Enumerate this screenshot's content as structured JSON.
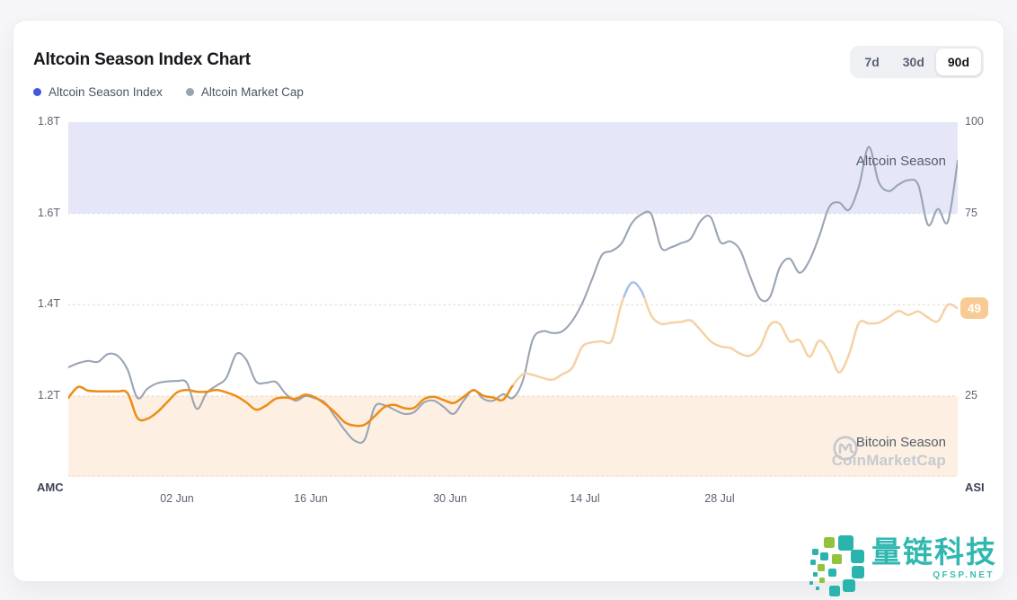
{
  "header": {
    "title": "Altcoin Season Index Chart",
    "ranges": [
      {
        "label": "7d",
        "active": false
      },
      {
        "label": "30d",
        "active": false
      },
      {
        "label": "90d",
        "active": true
      }
    ]
  },
  "legend": {
    "items": [
      {
        "label": "Altcoin Season Index",
        "color": "#4356e0"
      },
      {
        "label": "Altcoin Market Cap",
        "color": "#98a2b0"
      }
    ]
  },
  "chart_data": {
    "type": "line",
    "title": "Altcoin Season Index Chart",
    "watermark": "CoinMarketCap",
    "grid": "dotted-horizontal",
    "legend_position": "top-left",
    "left_axis": {
      "title": "AMC",
      "range": [
        1.0229,
        1.8
      ],
      "ticks": [
        {
          "label": "1.8T",
          "value": 1.8
        },
        {
          "label": "1.6T",
          "value": 1.6
        },
        {
          "label": "1.4T",
          "value": 1.4
        },
        {
          "label": "1.2T",
          "value": 1.2
        }
      ]
    },
    "right_axis": {
      "title": "ASI",
      "range": [
        2.87,
        100
      ],
      "ticks": [
        {
          "label": "100",
          "value": 100
        },
        {
          "label": "75",
          "value": 75
        },
        {
          "label": "25",
          "value": 25
        }
      ]
    },
    "x_axis": {
      "tick_labels": [
        {
          "label": "02 Jun",
          "pos": 0.1222
        },
        {
          "label": "16 Jun",
          "pos": 0.2727
        },
        {
          "label": "30 Jun",
          "pos": 0.4293
        },
        {
          "label": "14 Jul",
          "pos": 0.5808
        },
        {
          "label": "28 Jul",
          "pos": 0.7323
        }
      ]
    },
    "zones": {
      "altcoin": {
        "label": "Altcoin Season",
        "band": [
          75,
          100
        ],
        "color": "#e5e7f8"
      },
      "bitcoin": {
        "label": "Bitcoin Season",
        "band": [
          2.87,
          25
        ],
        "color": "#fdf0e2"
      }
    },
    "gridlines": [
      {
        "value": 75,
        "color": "#d9dcf2"
      },
      {
        "value": 50,
        "color": "#eadfd5"
      },
      {
        "value": 25,
        "color": "#f2ddc2"
      },
      {
        "value": 3.2,
        "color": "#f0e4d6"
      }
    ],
    "series": [
      {
        "name": "Altcoin Market Cap",
        "unit": "T USD",
        "axis": "left",
        "color": "#9aa4b4",
        "values": [
          1.263,
          1.272,
          1.277,
          1.275,
          1.292,
          1.288,
          1.258,
          1.196,
          1.216,
          1.228,
          1.232,
          1.233,
          1.229,
          1.172,
          1.207,
          1.223,
          1.24,
          1.292,
          1.28,
          1.232,
          1.229,
          1.231,
          1.205,
          1.19,
          1.2,
          1.195,
          1.185,
          1.155,
          1.125,
          1.102,
          1.105,
          1.176,
          1.18,
          1.17,
          1.161,
          1.165,
          1.186,
          1.19,
          1.176,
          1.161,
          1.19,
          1.214,
          1.194,
          1.19,
          1.204,
          1.196,
          1.234,
          1.324,
          1.342,
          1.338,
          1.342,
          1.365,
          1.403,
          1.456,
          1.509,
          1.518,
          1.535,
          1.578,
          1.598,
          1.598,
          1.525,
          1.526,
          1.535,
          1.545,
          1.584,
          1.592,
          1.537,
          1.539,
          1.519,
          1.462,
          1.413,
          1.417,
          1.482,
          1.501,
          1.47,
          1.497,
          1.551,
          1.614,
          1.624,
          1.608,
          1.659,
          1.746,
          1.669,
          1.649,
          1.663,
          1.673,
          1.663,
          1.575,
          1.61,
          1.582,
          1.716
        ]
      },
      {
        "name": "Altcoin Season Index",
        "axis": "right",
        "current_value": 49,
        "current_label": "49",
        "badge_color": "#f7cb93",
        "color_rules": {
          "below_value": 28,
          "above_value": 52,
          "below_color": "#ee8c17",
          "mid_color": "#f5d2a4",
          "above_color": "#a9c0ea"
        },
        "values": [
          24.5,
          27.5,
          26.5,
          26.3,
          26.3,
          26.3,
          25.8,
          19.0,
          18.8,
          20.6,
          23.3,
          26.0,
          26.7,
          26.2,
          26.2,
          26.7,
          26.0,
          25.0,
          23.3,
          21.3,
          22.4,
          24.3,
          24.6,
          24.3,
          25.4,
          24.6,
          22.8,
          20.5,
          17.8,
          16.9,
          17.2,
          19.5,
          22.0,
          22.6,
          21.7,
          21.8,
          24.2,
          24.8,
          23.9,
          23.1,
          24.8,
          26.6,
          25.1,
          24.6,
          24.0,
          28.0,
          31.0,
          30.8,
          30.0,
          29.5,
          31.0,
          32.8,
          38.5,
          39.7,
          40.0,
          40.3,
          50.5,
          56.0,
          53.8,
          47.0,
          44.8,
          45.1,
          45.3,
          45.7,
          43.0,
          40.0,
          38.6,
          38.2,
          36.6,
          36.1,
          38.5,
          44.5,
          44.7,
          40.0,
          40.3,
          35.8,
          40.2,
          37.0,
          31.5,
          36.4,
          45.0,
          44.9,
          45.1,
          46.6,
          48.3,
          47.2,
          48.2,
          46.5,
          45.5,
          50.0,
          49.0
        ]
      }
    ]
  },
  "footer_watermark": {
    "text": "量链科技",
    "subtext": "QFSP.NET",
    "color": "#2fb7b0"
  }
}
